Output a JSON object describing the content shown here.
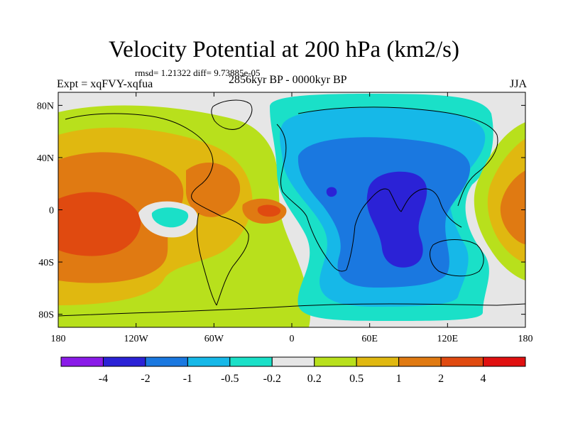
{
  "chart_data": {
    "type": "heatmap",
    "title": "Velocity Potential at 200 hPa (km2/s)",
    "stats": "rmsd= 1.21322  diff= 9.73885e-05",
    "experiment": "Expt = xqFVY-xqfua",
    "period": "2856kyr BP - 0000kyr BP",
    "season": "JJA",
    "x_ticks": [
      "180",
      "120W",
      "60W",
      "0",
      "60E",
      "120E",
      "180"
    ],
    "x_tick_values": [
      -180,
      -120,
      -60,
      0,
      60,
      120,
      180
    ],
    "y_ticks": [
      "80N",
      "40N",
      "0",
      "40S",
      "80S"
    ],
    "y_tick_values": [
      80,
      40,
      0,
      -40,
      -80
    ],
    "xlim": [
      -180,
      180
    ],
    "ylim": [
      -90,
      90
    ],
    "colorbar": {
      "labels": [
        "-4",
        "-2",
        "-1",
        "-0.5",
        "-0.2",
        "0.2",
        "0.5",
        "1",
        "2",
        "4"
      ],
      "colors": [
        "#8a1be8",
        "#2b22d6",
        "#1a78e0",
        "#16b8e8",
        "#1ae0c8",
        "#e6e6e6",
        "#b8e01c",
        "#e0b810",
        "#e07a12",
        "#e04a10",
        "#e01010"
      ]
    },
    "fields": [
      {
        "name": "positive-west-pacific-americas",
        "class": 0.5,
        "lon_range": [
          -180,
          -25
        ],
        "lat_range": [
          -75,
          85
        ]
      },
      {
        "name": "positive-core-pacific",
        "class": 2,
        "lon_range": [
          -180,
          -120
        ],
        "lat_range": [
          -40,
          30
        ]
      },
      {
        "name": "positive-max-central-pacific",
        "class": 4,
        "lon_range": [
          -175,
          -140
        ],
        "lat_range": [
          -35,
          0
        ]
      },
      {
        "name": "positive-caribbean",
        "class": 2,
        "lon_range": [
          -100,
          -65
        ],
        "lat_range": [
          -5,
          35
        ]
      },
      {
        "name": "positive-atlantic-max",
        "class": 4,
        "lon_range": [
          -22,
          -10
        ],
        "lat_range": [
          -5,
          5
        ]
      },
      {
        "name": "negative-eastern-pacific",
        "class": -0.5,
        "lon_range": [
          -115,
          -95
        ],
        "lat_range": [
          -10,
          0
        ]
      },
      {
        "name": "negative-africa-indian",
        "class": -1,
        "lon_range": [
          -10,
          145
        ],
        "lat_range": [
          -70,
          90
        ]
      },
      {
        "name": "negative-min-indian-ocean",
        "class": -2,
        "lon_range": [
          48,
          95
        ],
        "lat_range": [
          -40,
          28
        ]
      },
      {
        "name": "positive-west-pacific",
        "class": 2,
        "lon_range": [
          140,
          180
        ],
        "lat_range": [
          -40,
          40
        ]
      }
    ]
  }
}
